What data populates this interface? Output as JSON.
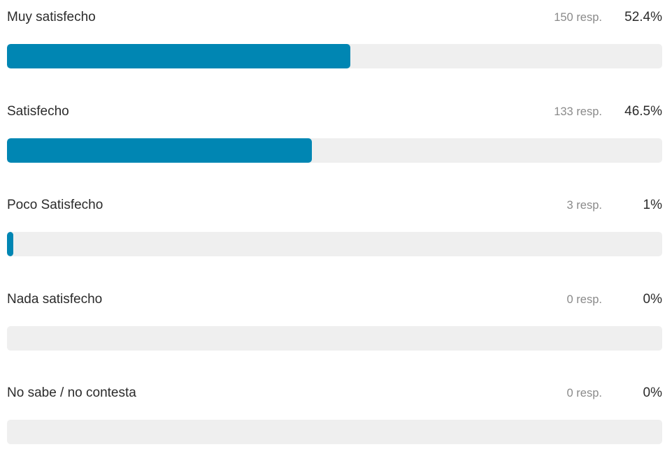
{
  "colors": {
    "bar_fill": "#0086b3",
    "bar_track": "#efefef",
    "label_text": "#2b2b2b",
    "count_text": "#8a8a8a"
  },
  "results": [
    {
      "label": "Muy satisfecho",
      "count": "150 resp.",
      "percent": "52.4%",
      "fill_percent": 52.4
    },
    {
      "label": "Satisfecho",
      "count": "133 resp.",
      "percent": "46.5%",
      "fill_percent": 46.5
    },
    {
      "label": "Poco Satisfecho",
      "count": "3 resp.",
      "percent": "1%",
      "fill_percent": 1
    },
    {
      "label": "Nada satisfecho",
      "count": "0 resp.",
      "percent": "0%",
      "fill_percent": 0
    },
    {
      "label": "No sabe / no contesta",
      "count": "0 resp.",
      "percent": "0%",
      "fill_percent": 0
    }
  ]
}
